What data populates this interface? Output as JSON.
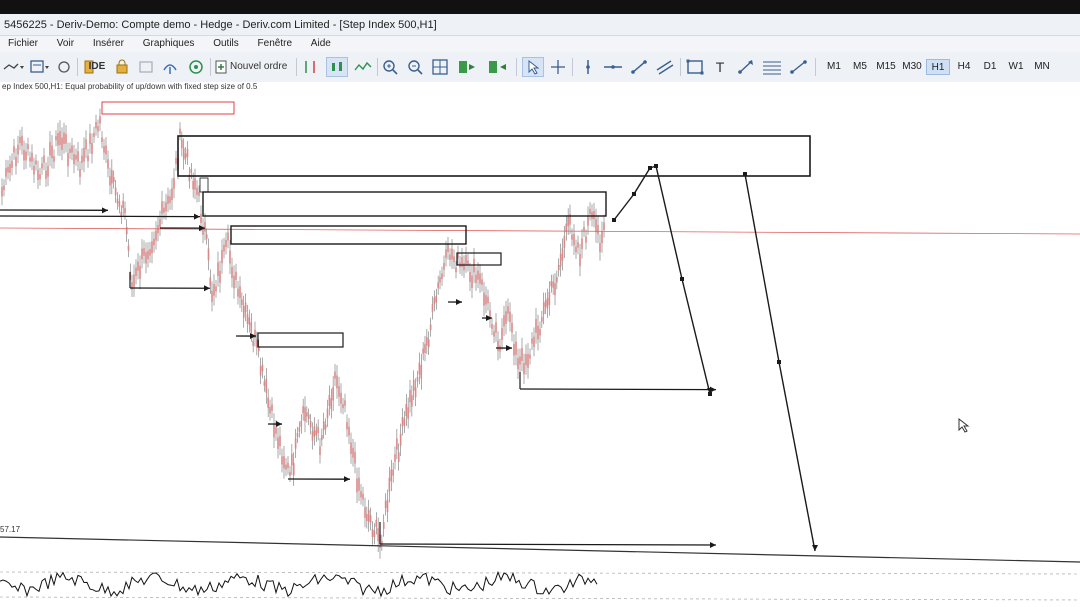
{
  "window": {
    "title": "5456225 - Deriv-Demo: Compte demo - Hedge - Deriv.com Limited - [Step Index 500,H1]"
  },
  "menu": {
    "items": [
      "Fichier",
      "Voir",
      "Insérer",
      "Graphiques",
      "Outils",
      "Fenêtre",
      "Aide"
    ]
  },
  "toolbar": {
    "ide_label": "IDE",
    "new_order_label": "Nouvel ordre",
    "timeframes": [
      "M1",
      "M5",
      "M15",
      "M30",
      "H1",
      "H4",
      "D1",
      "W1",
      "MN"
    ],
    "active_timeframe": "H1",
    "text_tool_label": "T"
  },
  "chart": {
    "info_text": "ep Index 500,H1:  Equal probability of up/down with fixed step size of 0.5",
    "oscillator_value": "57.17",
    "colors": {
      "candle": "#d98888",
      "wick": "#555555",
      "drawing": "#1a1a1a",
      "price_line": "#e06060",
      "highlight_box": "#e04040"
    }
  }
}
